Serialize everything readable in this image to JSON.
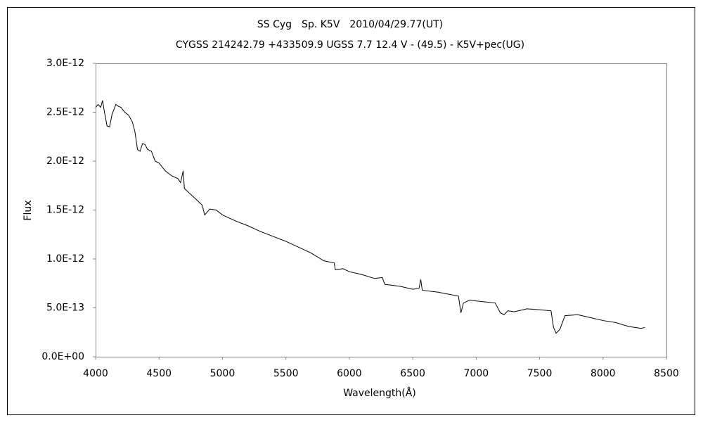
{
  "chart_data": {
    "type": "line",
    "title": "SS Cyg　Sp. K5V　2010/04/29.77(UT)",
    "subtitle": "CYGSS 214242.79 +433509.9 UGSS 7.7 12.4 V - (49.5) - K5V+pec(UG)",
    "x_label": "Wavelength(Å)",
    "y_label": "Flux",
    "xlim": [
      4000,
      8500
    ],
    "xticks": [
      4000,
      4500,
      5000,
      5500,
      6000,
      6500,
      7000,
      7500,
      8000,
      8500
    ],
    "ylim": [
      0,
      3e-12
    ],
    "yticks": [
      {
        "value": 0,
        "label": "0.0E+00"
      },
      {
        "value": 5e-13,
        "label": "5.0E-13"
      },
      {
        "value": 1e-12,
        "label": "1.0E-12"
      },
      {
        "value": 1.5e-12,
        "label": "1.5E-12"
      },
      {
        "value": 2e-12,
        "label": "2.0E-12"
      },
      {
        "value": 2.5e-12,
        "label": "2.5E-12"
      },
      {
        "value": 3e-12,
        "label": "3.0E-12"
      }
    ],
    "grid": false,
    "series": [
      {
        "color": "#000000",
        "x": [
          4000,
          4020,
          4040,
          4055,
          4070,
          4090,
          4110,
          4130,
          4160,
          4180,
          4200,
          4230,
          4260,
          4290,
          4310,
          4330,
          4350,
          4370,
          4390,
          4410,
          4440,
          4470,
          4500,
          4550,
          4600,
          4650,
          4670,
          4690,
          4700,
          4750,
          4800,
          4840,
          4860,
          4880,
          4900,
          4950,
          5000,
          5100,
          5200,
          5300,
          5400,
          5500,
          5600,
          5700,
          5800,
          5880,
          5890,
          5950,
          6000,
          6100,
          6200,
          6260,
          6280,
          6400,
          6500,
          6550,
          6563,
          6575,
          6700,
          6860,
          6880,
          6900,
          6950,
          7000,
          7150,
          7190,
          7220,
          7250,
          7300,
          7400,
          7500,
          7590,
          7610,
          7630,
          7660,
          7700,
          7800,
          7900,
          8000,
          8100,
          8200,
          8300,
          8330
        ],
        "values": [
          2.55e-12,
          2.58e-12,
          2.55e-12,
          2.62e-12,
          2.5e-12,
          2.36e-12,
          2.35e-12,
          2.48e-12,
          2.58e-12,
          2.56e-12,
          2.55e-12,
          2.5e-12,
          2.47e-12,
          2.4e-12,
          2.3e-12,
          2.12e-12,
          2.1e-12,
          2.18e-12,
          2.17e-12,
          2.12e-12,
          2.1e-12,
          2e-12,
          1.98e-12,
          1.9e-12,
          1.85e-12,
          1.82e-12,
          1.78e-12,
          1.9e-12,
          1.72e-12,
          1.66e-12,
          1.6e-12,
          1.55e-12,
          1.45e-12,
          1.48e-12,
          1.51e-12,
          1.5e-12,
          1.45e-12,
          1.39e-12,
          1.34e-12,
          1.28e-12,
          1.23e-12,
          1.18e-12,
          1.12e-12,
          1.06e-12,
          9.8e-13,
          9.6e-13,
          8.9e-13,
          9e-13,
          8.7e-13,
          8.4e-13,
          8e-13,
          8.1e-13,
          7.4e-13,
          7.2e-13,
          6.9e-13,
          7e-13,
          7.9e-13,
          6.8e-13,
          6.6e-13,
          6.2e-13,
          4.5e-13,
          5.5e-13,
          5.8e-13,
          5.7e-13,
          5.5e-13,
          4.5e-13,
          4.3e-13,
          4.7e-13,
          4.6e-13,
          4.9e-13,
          4.8e-13,
          4.7e-13,
          3e-13,
          2.4e-13,
          2.8e-13,
          4.2e-13,
          4.3e-13,
          4e-13,
          3.7e-13,
          3.5e-13,
          3.1e-13,
          2.9e-13,
          3e-13
        ]
      }
    ]
  }
}
